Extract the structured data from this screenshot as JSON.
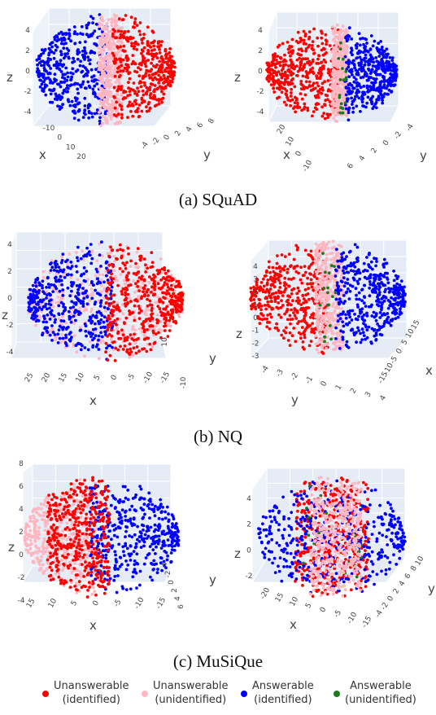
{
  "chart_data": [
    {
      "type": "scatter",
      "dataset": "SQuAD",
      "view": 1,
      "axes": {
        "x": {
          "label": "x",
          "ticks": [
            "-10",
            "0",
            "10",
            "20"
          ]
        },
        "y": {
          "label": "y",
          "ticks": [
            "-4",
            "-2",
            "0",
            "2",
            "4",
            "6",
            "8"
          ]
        },
        "z": {
          "label": "z",
          "ticks": [
            "4",
            "2",
            "0",
            "-2",
            "-4"
          ]
        }
      },
      "clusters": [
        {
          "series": "answerable_identified",
          "x_range": [
            -12,
            0
          ],
          "z_range": [
            -4,
            4
          ]
        },
        {
          "series": "unanswerable_unidentified",
          "x_range": [
            -2,
            4
          ],
          "z_range": [
            -3,
            4
          ]
        },
        {
          "series": "unanswerable_identified",
          "x_range": [
            2,
            10
          ],
          "z_range": [
            -2,
            4
          ]
        }
      ]
    },
    {
      "type": "scatter",
      "dataset": "SQuAD",
      "view": 2,
      "axes": {
        "x": {
          "label": "x",
          "ticks": [
            "20",
            "10",
            "0",
            "-10"
          ]
        },
        "y": {
          "label": "y",
          "ticks": [
            "6",
            "4",
            "2",
            "0",
            "-2",
            "-4"
          ]
        },
        "z": {
          "label": "z",
          "ticks": [
            "4",
            "2",
            "0",
            "-2",
            "-4"
          ]
        }
      },
      "clusters": [
        {
          "series": "unanswerable_identified",
          "x_range": [
            0,
            20
          ],
          "z_range": [
            -2,
            3
          ]
        },
        {
          "series": "unanswerable_unidentified",
          "x_range": [
            -2,
            2
          ],
          "z_range": [
            -2,
            3
          ]
        },
        {
          "series": "answerable_identified",
          "x_range": [
            -10,
            0
          ],
          "z_range": [
            -2,
            4
          ]
        },
        {
          "series": "answerable_unidentified",
          "x_range": [
            -3,
            -1
          ],
          "z_range": [
            -1,
            1
          ]
        }
      ]
    },
    {
      "type": "scatter",
      "dataset": "NQ",
      "view": 1,
      "axes": {
        "x": {
          "label": "x",
          "ticks": [
            "25",
            "20",
            "15",
            "10",
            "5",
            "0",
            "-5",
            "-10",
            "-15"
          ]
        },
        "y": {
          "label": "y",
          "ticks": [
            "10",
            "-10"
          ]
        },
        "z": {
          "label": "z",
          "ticks": [
            "4",
            "2",
            "0",
            "-2",
            "-4"
          ]
        }
      },
      "clusters": [
        {
          "series": "unanswerable_unidentified",
          "x_range": [
            -15,
            20
          ],
          "z_range": [
            -2,
            4
          ]
        },
        {
          "series": "answerable_identified",
          "x_range": [
            0,
            20
          ],
          "z_range": [
            -3,
            3
          ]
        },
        {
          "series": "unanswerable_identified",
          "x_range": [
            -15,
            5
          ],
          "z_range": [
            -1,
            4
          ]
        }
      ]
    },
    {
      "type": "scatter",
      "dataset": "NQ",
      "view": 2,
      "axes": {
        "x": {
          "label": "x",
          "ticks": [
            "-15",
            "-10",
            "-5",
            "0",
            "5",
            "10",
            "15"
          ]
        },
        "y": {
          "label": "y",
          "ticks": [
            "-4",
            "-3",
            "-2",
            "-1",
            "0",
            "1",
            "2",
            "3",
            "4"
          ]
        },
        "z": {
          "label": "z",
          "ticks": [
            "4",
            "3",
            "2",
            "1",
            "0",
            "-1",
            "-2",
            "-3"
          ]
        }
      },
      "clusters": [
        {
          "series": "unanswerable_identified",
          "x_range": [
            -15,
            0
          ],
          "z_range": [
            -2,
            4
          ]
        },
        {
          "series": "unanswerable_unidentified",
          "x_range": [
            -2,
            3
          ],
          "z_range": [
            -2,
            3
          ]
        },
        {
          "series": "answerable_identified",
          "x_range": [
            0,
            15
          ],
          "z_range": [
            -2,
            4
          ]
        },
        {
          "series": "answerable_unidentified",
          "x_range": [
            -3,
            1
          ],
          "z_range": [
            -1,
            2
          ]
        }
      ]
    },
    {
      "type": "scatter",
      "dataset": "MuSiQue",
      "view": 1,
      "axes": {
        "x": {
          "label": "x",
          "ticks": [
            "15",
            "10",
            "5",
            "0",
            "-5",
            "-10",
            "-15"
          ]
        },
        "y": {
          "label": "y",
          "ticks": [
            "-4",
            "-2",
            "0",
            "2",
            "4",
            "6"
          ]
        },
        "z": {
          "label": "z",
          "ticks": [
            "8",
            "6",
            "4",
            "2",
            "0",
            "-2",
            "-4"
          ]
        }
      },
      "clusters": [
        {
          "series": "unanswerable_unidentified",
          "x_range": [
            2,
            15
          ],
          "z_range": [
            -2,
            6
          ]
        },
        {
          "series": "answerable_identified",
          "x_range": [
            -15,
            2
          ],
          "z_range": [
            -2,
            6
          ]
        },
        {
          "series": "unanswerable_identified",
          "x_range": [
            0,
            8
          ],
          "z_range": [
            0,
            4
          ]
        }
      ]
    },
    {
      "type": "scatter",
      "dataset": "MuSiQue",
      "view": 2,
      "axes": {
        "x": {
          "label": "x",
          "ticks": [
            "-20",
            "15",
            "10",
            "5",
            "0",
            "-5",
            "-10",
            "-15"
          ]
        },
        "y": {
          "label": "y",
          "ticks": [
            "-4",
            "-2",
            "0",
            "2",
            "4",
            "6",
            "8",
            "10"
          ]
        },
        "z": {
          "label": "z",
          "ticks": [
            "4",
            "2",
            "0",
            "-2"
          ]
        }
      },
      "clusters": [
        {
          "series": "unanswerable_identified",
          "x_range": [
            -5,
            10
          ],
          "z_range": [
            1,
            5
          ]
        },
        {
          "series": "answerable_identified",
          "x_range": [
            -15,
            10
          ],
          "z_range": [
            -2,
            3
          ]
        },
        {
          "series": "answerable_unidentified",
          "x_range": [
            -5,
            10
          ],
          "z_range": [
            0,
            4
          ]
        },
        {
          "series": "unanswerable_unidentified",
          "x_range": [
            0,
            8
          ],
          "z_range": [
            0,
            3
          ]
        }
      ]
    }
  ],
  "captions": [
    "(a) SQuAD",
    "(b) NQ",
    "(c) MuSiQue"
  ],
  "legend": [
    {
      "key": "unanswerable_identified",
      "line1": "Unanswerable",
      "line2": "(identified)",
      "color": "#ff0000"
    },
    {
      "key": "unanswerable_unidentified",
      "line1": "Unanswerable",
      "line2": "(unidentified)",
      "color": "#ffb6c1"
    },
    {
      "key": "answerable_identified",
      "line1": "Answerable",
      "line2": "(identified)",
      "color": "#0000ff"
    },
    {
      "key": "answerable_unidentified",
      "line1": "Answerable",
      "line2": "(unidentified)",
      "color": "#1f7a1f"
    }
  ]
}
